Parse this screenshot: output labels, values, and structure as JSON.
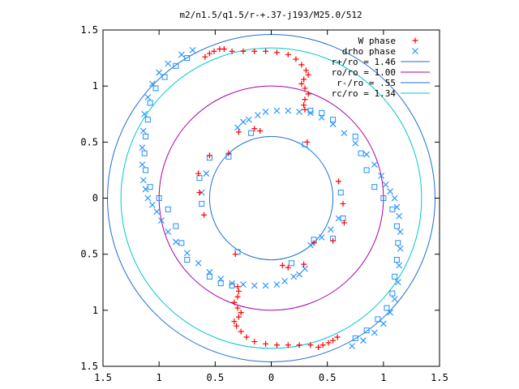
{
  "chart_data": {
    "type": "scatter",
    "title": "m2/n1.5/q1.5/r-+.37-j193/M25.0/512",
    "xlabel": "",
    "ylabel": "",
    "xlim": [
      -1.5,
      1.5
    ],
    "ylim": [
      -1.5,
      1.5
    ],
    "x_tick_values": [
      -1.5,
      -1,
      -0.5,
      0,
      0.5,
      1,
      1.5
    ],
    "x_tick_labels": [
      "1.5",
      "1",
      "0.5",
      "0",
      "0.5",
      "1",
      "1.5"
    ],
    "y_tick_values": [
      1.5,
      1,
      0.5,
      0,
      -0.5,
      -1,
      -1.5
    ],
    "y_tick_labels": [
      "1.5",
      "1",
      "0.5",
      "0",
      "0.5",
      "1",
      "1.5"
    ],
    "grid": false,
    "legend_position": "top-right",
    "series": [
      {
        "name": "W phase",
        "kind": "points",
        "marker": "plus",
        "color": "#ff0000",
        "points": [
          [
            -0.59,
            1.26
          ],
          [
            -0.55,
            1.29
          ],
          [
            -0.51,
            1.31
          ],
          [
            -0.46,
            1.33
          ],
          [
            -0.42,
            1.33
          ],
          [
            -0.35,
            1.31
          ],
          [
            -0.25,
            1.31
          ],
          [
            -0.15,
            1.31
          ],
          [
            -0.05,
            1.31
          ],
          [
            0.05,
            1.3
          ],
          [
            0.15,
            1.28
          ],
          [
            0.22,
            1.24
          ],
          [
            0.27,
            1.19
          ],
          [
            0.31,
            1.14
          ],
          [
            0.33,
            1.1
          ],
          [
            0.29,
            1.06
          ],
          [
            0.27,
            1.02
          ],
          [
            0.3,
            0.98
          ],
          [
            0.33,
            0.93
          ],
          [
            0.3,
            0.88
          ],
          [
            0.29,
            0.83
          ],
          [
            0.3,
            0.79
          ],
          [
            0.59,
            -1.24
          ],
          [
            0.55,
            -1.27
          ],
          [
            0.51,
            -1.29
          ],
          [
            0.46,
            -1.31
          ],
          [
            0.42,
            -1.33
          ],
          [
            0.35,
            -1.31
          ],
          [
            0.25,
            -1.31
          ],
          [
            0.15,
            -1.31
          ],
          [
            0.05,
            -1.31
          ],
          [
            -0.05,
            -1.3
          ],
          [
            -0.15,
            -1.28
          ],
          [
            -0.22,
            -1.24
          ],
          [
            -0.27,
            -1.19
          ],
          [
            -0.31,
            -1.14
          ],
          [
            -0.33,
            -1.1
          ],
          [
            -0.29,
            -1.06
          ],
          [
            -0.27,
            -1.02
          ],
          [
            -0.3,
            -0.98
          ],
          [
            -0.33,
            -0.93
          ],
          [
            -0.3,
            -0.88
          ],
          [
            -0.29,
            -0.83
          ],
          [
            -0.3,
            -0.79
          ],
          [
            -0.1,
            0.6
          ],
          [
            -0.15,
            0.62
          ],
          [
            -0.29,
            0.59
          ],
          [
            -0.38,
            0.4
          ],
          [
            -0.55,
            0.38
          ],
          [
            -0.65,
            0.22
          ],
          [
            -0.64,
            0.05
          ],
          [
            -0.6,
            -0.15
          ],
          [
            -0.32,
            -0.5
          ],
          [
            0.1,
            -0.6
          ],
          [
            0.15,
            -0.62
          ],
          [
            0.29,
            -0.59
          ],
          [
            0.38,
            -0.4
          ],
          [
            0.55,
            -0.38
          ],
          [
            0.65,
            -0.22
          ],
          [
            0.64,
            -0.05
          ],
          [
            0.6,
            0.15
          ],
          [
            0.32,
            0.5
          ]
        ]
      },
      {
        "name": "drho phase",
        "kind": "points",
        "marker": "cross",
        "color": "#1e90ff",
        "points": [
          [
            -0.3,
            0.63
          ],
          [
            -0.25,
            0.68
          ],
          [
            -0.2,
            0.7
          ],
          [
            -0.12,
            0.74
          ],
          [
            -0.05,
            0.77
          ],
          [
            0.05,
            0.78
          ],
          [
            0.15,
            0.78
          ],
          [
            0.25,
            0.77
          ],
          [
            0.35,
            0.76
          ],
          [
            0.45,
            0.72
          ],
          [
            0.55,
            0.66
          ],
          [
            0.65,
            0.58
          ],
          [
            0.75,
            0.49
          ],
          [
            0.85,
            0.39
          ],
          [
            0.92,
            0.3
          ],
          [
            0.98,
            0.2
          ],
          [
            1.02,
            0.12
          ],
          [
            1.06,
            0.06
          ],
          [
            1.1,
            0.0
          ],
          [
            1.12,
            -0.08
          ],
          [
            1.14,
            -0.16
          ],
          [
            1.15,
            -0.3
          ],
          [
            1.15,
            -0.45
          ],
          [
            1.14,
            -0.6
          ],
          [
            1.13,
            -0.75
          ],
          [
            1.1,
            -0.9
          ],
          [
            1.06,
            -1.02
          ],
          [
            1.0,
            -1.12
          ],
          [
            0.92,
            -1.2
          ],
          [
            0.82,
            -1.27
          ],
          [
            0.72,
            -1.32
          ],
          [
            0.3,
            -0.63
          ],
          [
            0.25,
            -0.68
          ],
          [
            0.2,
            -0.7
          ],
          [
            0.12,
            -0.74
          ],
          [
            0.05,
            -0.77
          ],
          [
            -0.05,
            -0.78
          ],
          [
            -0.15,
            -0.78
          ],
          [
            -0.25,
            -0.77
          ],
          [
            -0.35,
            -0.76
          ],
          [
            -0.45,
            -0.72
          ],
          [
            -0.55,
            -0.66
          ],
          [
            -0.65,
            -0.58
          ],
          [
            -0.75,
            -0.49
          ],
          [
            -0.85,
            -0.39
          ],
          [
            -0.92,
            -0.3
          ],
          [
            -0.98,
            -0.2
          ],
          [
            -1.02,
            -0.12
          ],
          [
            -1.06,
            -0.06
          ],
          [
            -1.1,
            0.0
          ],
          [
            -1.12,
            0.08
          ],
          [
            -1.14,
            0.16
          ],
          [
            -1.15,
            0.3
          ],
          [
            -1.15,
            0.45
          ],
          [
            -1.14,
            0.6
          ],
          [
            -1.13,
            0.75
          ],
          [
            -1.1,
            0.9
          ],
          [
            -1.06,
            1.02
          ],
          [
            -1.0,
            1.12
          ],
          [
            -0.92,
            1.2
          ],
          [
            -0.8,
            1.28
          ],
          [
            -0.7,
            1.32
          ],
          [
            0.35,
            -0.42
          ],
          [
            0.45,
            -0.35
          ],
          [
            0.53,
            -0.28
          ],
          [
            0.6,
            -0.18
          ],
          [
            -0.58,
            0.22
          ],
          [
            -0.62,
            0.05
          ]
        ]
      },
      {
        "name": "",
        "kind": "points",
        "marker": "square",
        "color": "#1e90ff",
        "points": [
          [
            -0.75,
            1.25
          ],
          [
            -0.85,
            1.18
          ],
          [
            -0.95,
            1.08
          ],
          [
            -1.03,
            0.98
          ],
          [
            -1.08,
            0.85
          ],
          [
            -1.1,
            0.7
          ],
          [
            -1.12,
            0.55
          ],
          [
            -1.13,
            0.4
          ],
          [
            -1.12,
            0.25
          ],
          [
            -1.08,
            0.1
          ],
          [
            -1.0,
            0.0
          ],
          [
            -0.92,
            -0.1
          ],
          [
            -0.85,
            -0.25
          ],
          [
            -0.8,
            -0.4
          ],
          [
            -0.75,
            -0.55
          ],
          [
            -0.55,
            -0.7
          ],
          [
            -0.45,
            -0.76
          ],
          [
            -0.35,
            -0.78
          ],
          [
            0.75,
            -1.25
          ],
          [
            0.85,
            -1.18
          ],
          [
            0.95,
            -1.08
          ],
          [
            1.03,
            -0.98
          ],
          [
            1.08,
            -0.85
          ],
          [
            1.1,
            -0.7
          ],
          [
            1.12,
            -0.55
          ],
          [
            1.13,
            -0.4
          ],
          [
            1.12,
            -0.25
          ],
          [
            1.08,
            -0.1
          ],
          [
            1.0,
            0.0
          ],
          [
            0.92,
            0.1
          ],
          [
            0.85,
            0.25
          ],
          [
            0.8,
            0.4
          ],
          [
            0.75,
            0.55
          ],
          [
            0.55,
            0.7
          ],
          [
            0.45,
            0.76
          ],
          [
            0.35,
            0.78
          ],
          [
            -0.18,
            0.58
          ],
          [
            -0.38,
            0.37
          ],
          [
            -0.55,
            0.36
          ],
          [
            -0.64,
            0.18
          ],
          [
            -0.62,
            -0.05
          ],
          [
            0.18,
            -0.58
          ],
          [
            0.38,
            -0.37
          ],
          [
            0.55,
            -0.36
          ],
          [
            0.64,
            -0.18
          ],
          [
            0.62,
            0.05
          ],
          [
            0.3,
            0.48
          ],
          [
            -0.3,
            -0.48
          ]
        ]
      },
      {
        "name": "r+/ro = 1.46",
        "kind": "circle",
        "radius": 1.46,
        "color": "#1e6fd0"
      },
      {
        "name": "ro/ro = 1.00",
        "kind": "circle",
        "radius": 1.0,
        "color": "#aa00aa"
      },
      {
        "name": "r-/ro = .55",
        "kind": "circle",
        "radius": 0.55,
        "color": "#1e6fd0"
      },
      {
        "name": "rc/ro = 1.34",
        "kind": "circle",
        "radius": 1.34,
        "color": "#00c8c8"
      }
    ]
  }
}
